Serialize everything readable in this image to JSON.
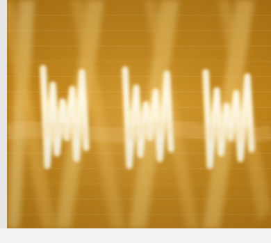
{
  "image": {
    "subject": "",
    "accent": "#f6d27a",
    "palette": {
      "background_dark": "#b57812",
      "background_mid": "#c68a1f",
      "background_light": "#d9a13a",
      "glow": "#fff2c2"
    }
  }
}
